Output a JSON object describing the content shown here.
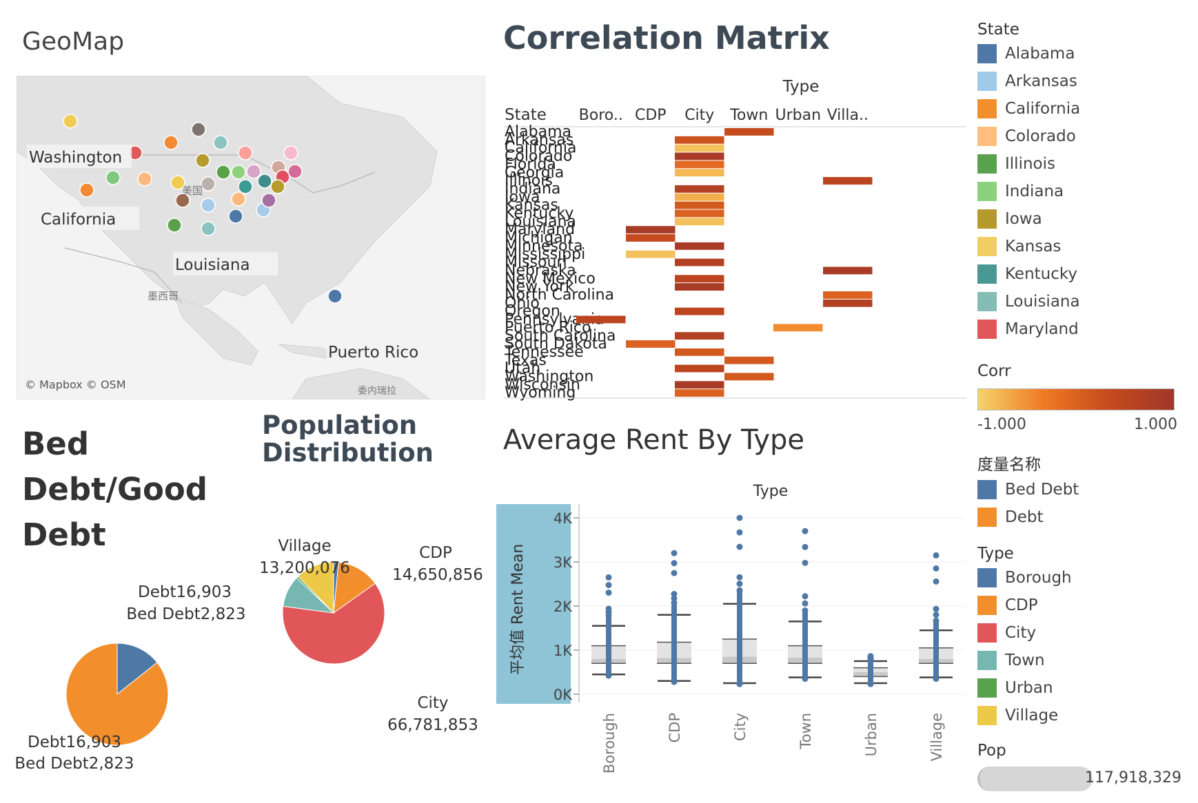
{
  "geomap": {
    "title": "GeoMap",
    "attribution": "© Mapbox © OSM",
    "labels": [
      "Washington",
      "California",
      "Louisiana",
      "Puerto Rico"
    ],
    "basemap_labels": [
      "美国",
      "墨西哥",
      "委内瑞拉"
    ],
    "points": [
      {
        "color": "#f0cc55"
      },
      {
        "color": "#f28a35"
      },
      {
        "color": "#e05a5a"
      },
      {
        "color": "#f28a35"
      },
      {
        "color": "#7f736d"
      },
      {
        "color": "#8bc3c0"
      },
      {
        "color": "#fb9f9a"
      },
      {
        "color": "#f6b9d0"
      },
      {
        "color": "#7ec97c"
      },
      {
        "color": "#fdb97d"
      },
      {
        "color": "#f0cc55"
      },
      {
        "color": "#b79b2e"
      },
      {
        "color": "#5aa14a"
      },
      {
        "color": "#8ed27e"
      },
      {
        "color": "#d8a4c8"
      },
      {
        "color": "#d4a79b"
      },
      {
        "color": "#e24f5e"
      },
      {
        "color": "#d36c97"
      },
      {
        "color": "#bab0ac"
      },
      {
        "color": "#3d9a94"
      },
      {
        "color": "#3e8d8d"
      },
      {
        "color": "#b79b2e"
      },
      {
        "color": "#9a6a4f"
      },
      {
        "color": "#a8cbea"
      },
      {
        "color": "#fdb97d"
      },
      {
        "color": "#a8cbea"
      },
      {
        "color": "#a56fa4"
      },
      {
        "color": "#5aa14a"
      },
      {
        "color": "#8bc3c0"
      },
      {
        "color": "#4e79a7"
      },
      {
        "color": "#4e79a7"
      }
    ]
  },
  "correlation": {
    "title": "Correlation Matrix",
    "column_header": "Type",
    "row_header": "State",
    "columns": [
      "Boro..",
      "CDP",
      "City",
      "Town",
      "Urban",
      "Villa.."
    ],
    "rows": [
      "Alabama",
      "Arkansas",
      "California",
      "Colorado",
      "Florida",
      "Georgia",
      "Illinois",
      "Indiana",
      "Iowa",
      "Kansas",
      "Kentucky",
      "Louisiana",
      "Maryland",
      "Michigan",
      "Minnesota",
      "Mississippi",
      "Missouri",
      "Nebraska",
      "New Mexico",
      "New York",
      "North Carolina",
      "Ohio",
      "Oregon",
      "Pennsylvania",
      "Puerto Rico",
      "South Carolina",
      "South Dakota",
      "Tennessee",
      "Texas",
      "Utah",
      "Washington",
      "Wisconsin",
      "Wyoming"
    ],
    "cells": [
      {
        "row": 0,
        "col": 3,
        "value": 0.6
      },
      {
        "row": 1,
        "col": 2,
        "value": 0.5
      },
      {
        "row": 2,
        "col": 2,
        "value": -0.8
      },
      {
        "row": 3,
        "col": 2,
        "value": 0.9
      },
      {
        "row": 4,
        "col": 2,
        "value": 0.2
      },
      {
        "row": 5,
        "col": 2,
        "value": -0.7
      },
      {
        "row": 6,
        "col": 5,
        "value": 0.7
      },
      {
        "row": 7,
        "col": 2,
        "value": 0.8
      },
      {
        "row": 8,
        "col": 2,
        "value": -0.6
      },
      {
        "row": 9,
        "col": 2,
        "value": 0.4
      },
      {
        "row": 10,
        "col": 2,
        "value": 0.3
      },
      {
        "row": 11,
        "col": 2,
        "value": -0.8
      },
      {
        "row": 12,
        "col": 1,
        "value": 0.9
      },
      {
        "row": 13,
        "col": 1,
        "value": 0.6
      },
      {
        "row": 14,
        "col": 2,
        "value": 0.9
      },
      {
        "row": 15,
        "col": 1,
        "value": -0.8
      },
      {
        "row": 16,
        "col": 2,
        "value": 0.8
      },
      {
        "row": 17,
        "col": 5,
        "value": 0.9
      },
      {
        "row": 18,
        "col": 2,
        "value": 0.7
      },
      {
        "row": 19,
        "col": 2,
        "value": 0.9
      },
      {
        "row": 20,
        "col": 5,
        "value": 0.3
      },
      {
        "row": 21,
        "col": 5,
        "value": 0.8
      },
      {
        "row": 22,
        "col": 2,
        "value": 0.7
      },
      {
        "row": 23,
        "col": 0,
        "value": 0.7
      },
      {
        "row": 24,
        "col": 4,
        "value": -0.2
      },
      {
        "row": 25,
        "col": 2,
        "value": 0.8
      },
      {
        "row": 26,
        "col": 1,
        "value": 0.3
      },
      {
        "row": 27,
        "col": 2,
        "value": 0.4
      },
      {
        "row": 28,
        "col": 3,
        "value": 0.4
      },
      {
        "row": 29,
        "col": 2,
        "value": 0.7
      },
      {
        "row": 30,
        "col": 3,
        "value": 0.4
      },
      {
        "row": 31,
        "col": 2,
        "value": 0.9
      },
      {
        "row": 32,
        "col": 2,
        "value": 0.3
      }
    ]
  },
  "bed_debt": {
    "title": "Bed Debt/Good Debt",
    "label_top_1": "Debt16,903",
    "label_top_2": "Bed Debt2,823",
    "label_bottom_1": "Debt16,903",
    "label_bottom_2": "Bed Debt2,823"
  },
  "population": {
    "title": "Population Distribution",
    "village_name": "Village",
    "village_value": "13,200,076",
    "cdp_name": "CDP",
    "cdp_value": "14,650,856",
    "city_name": "City",
    "city_value": "66,781,853"
  },
  "avg_rent": {
    "title": "Average Rent By Type",
    "x_header": "Type",
    "y_label": "平均值 Rent Mean",
    "y_ticks": [
      "0K",
      "1K",
      "2K",
      "3K",
      "4K"
    ],
    "categories": [
      "Borough",
      "CDP",
      "City",
      "Town",
      "Urban",
      "Village"
    ]
  },
  "legends": {
    "state_title": "State",
    "states": [
      {
        "name": "Alabama",
        "color": "#4e79a7"
      },
      {
        "name": "Arkansas",
        "color": "#a0cbe8"
      },
      {
        "name": "California",
        "color": "#f28e2b"
      },
      {
        "name": "Colorado",
        "color": "#ffbe7d"
      },
      {
        "name": "Illinois",
        "color": "#59a14f"
      },
      {
        "name": "Indiana",
        "color": "#8cd17d"
      },
      {
        "name": "Iowa",
        "color": "#b6992d"
      },
      {
        "name": "Kansas",
        "color": "#f1ce63"
      },
      {
        "name": "Kentucky",
        "color": "#499894"
      },
      {
        "name": "Louisiana",
        "color": "#86bcb6"
      },
      {
        "name": "Maryland",
        "color": "#e15759"
      }
    ],
    "corr_title": "Corr",
    "corr_min": "-1.000",
    "corr_max": "1.000",
    "measure_title": "度量名称",
    "measures": [
      {
        "name": "Bed Debt",
        "color": "#4e79a7"
      },
      {
        "name": "Debt",
        "color": "#f28e2b"
      }
    ],
    "type_title": "Type",
    "types": [
      {
        "name": "Borough",
        "color": "#4e79a7"
      },
      {
        "name": "CDP",
        "color": "#f28e2b"
      },
      {
        "name": "City",
        "color": "#e15759"
      },
      {
        "name": "Town",
        "color": "#76b7b2"
      },
      {
        "name": "Urban",
        "color": "#59a14f"
      },
      {
        "name": "Village",
        "color": "#edc948"
      }
    ],
    "pop_title": "Pop",
    "pop_value": "117,918,329"
  },
  "chart_data": [
    {
      "type": "heatmap",
      "title": "Correlation Matrix",
      "x_header": "Type",
      "y_header": "State",
      "color_legend": "Corr",
      "color_range": [
        -1,
        1
      ]
    },
    {
      "type": "pie",
      "title": "Bed Debt/Good Debt",
      "slices": [
        {
          "name": "Debt",
          "value": 16903,
          "color": "#f28e2b"
        },
        {
          "name": "Bed Debt",
          "value": 2823,
          "color": "#4e79a7"
        }
      ]
    },
    {
      "type": "pie",
      "title": "Population Distribution",
      "slices": [
        {
          "name": "Borough",
          "value": 1700000,
          "color": "#4e79a7"
        },
        {
          "name": "CDP",
          "value": 14650856,
          "color": "#f28e2b"
        },
        {
          "name": "City",
          "value": 66781853,
          "color": "#e15759"
        },
        {
          "name": "Town",
          "value": 10800000,
          "color": "#76b7b2"
        },
        {
          "name": "Urban",
          "value": 700000,
          "color": "#59a14f"
        },
        {
          "name": "Village",
          "value": 13200076,
          "color": "#edc948"
        }
      ]
    },
    {
      "type": "scatter",
      "subtype": "box",
      "title": "Average Rent By Type",
      "xlabel": "Type",
      "ylabel": "平均值 Rent Mean",
      "ylim": [
        0,
        4000
      ],
      "categories": [
        "Borough",
        "CDP",
        "City",
        "Town",
        "Urban",
        "Village"
      ],
      "boxes": [
        {
          "whisker_low": 450,
          "q1": 700,
          "median": 800,
          "q3": 1100,
          "whisker_high": 1550,
          "max": 2650,
          "min": 420
        },
        {
          "whisker_low": 300,
          "q1": 700,
          "median": 820,
          "q3": 1180,
          "whisker_high": 1800,
          "max": 3200,
          "min": 280
        },
        {
          "whisker_low": 250,
          "q1": 700,
          "median": 850,
          "q3": 1250,
          "whisker_high": 2050,
          "max": 4000,
          "min": 230
        },
        {
          "whisker_low": 380,
          "q1": 700,
          "median": 830,
          "q3": 1100,
          "whisker_high": 1650,
          "max": 3700,
          "min": 350
        },
        {
          "whisker_low": 250,
          "q1": 400,
          "median": 500,
          "q3": 600,
          "whisker_high": 750,
          "max": 780,
          "min": 230
        },
        {
          "whisker_low": 380,
          "q1": 700,
          "median": 800,
          "q3": 1050,
          "whisker_high": 1450,
          "max": 3150,
          "min": 350
        }
      ]
    }
  ]
}
